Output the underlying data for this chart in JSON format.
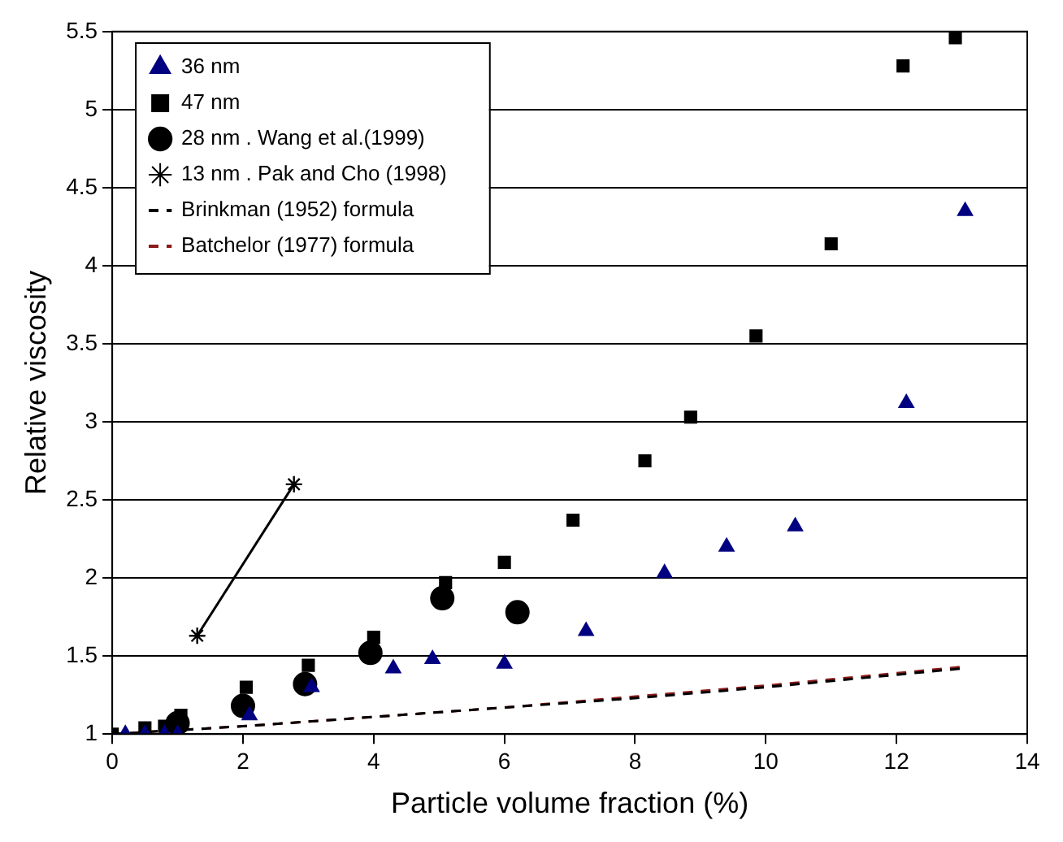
{
  "chart_data": {
    "type": "scatter",
    "xlabel": "Particle volume fraction (%)",
    "ylabel": "Relative viscosity",
    "xlim": [
      0,
      14
    ],
    "xticks": [
      0,
      2,
      4,
      6,
      8,
      10,
      12,
      14
    ],
    "ylim": [
      1,
      5.5
    ],
    "yticks": [
      1,
      1.5,
      2,
      2.5,
      3,
      3.5,
      4,
      4.5,
      5,
      5.5
    ],
    "grid": "y",
    "legend": "top left",
    "series": [
      {
        "name": "36 nm",
        "marker": "triangle",
        "color": "#000080",
        "x": [
          0.2,
          0.5,
          0.8,
          1.0,
          2.1,
          3.05,
          4.3,
          4.9,
          6.0,
          7.25,
          8.45,
          9.4,
          10.45,
          12.15,
          13.05
        ],
        "values": [
          1.0,
          1.0,
          1.0,
          1.0,
          1.12,
          1.3,
          1.42,
          1.48,
          1.45,
          1.66,
          2.03,
          2.2,
          2.33,
          3.12,
          4.35
        ]
      },
      {
        "name": "47 nm",
        "marker": "square",
        "color": "#000000",
        "x": [
          0.0,
          0.5,
          0.8,
          1.05,
          2.05,
          3.0,
          4.0,
          5.1,
          6.0,
          7.05,
          8.15,
          8.85,
          9.85,
          11.0,
          12.1,
          12.9
        ],
        "values": [
          1.0,
          1.04,
          1.05,
          1.12,
          1.3,
          1.44,
          1.62,
          1.97,
          2.1,
          2.37,
          2.75,
          3.03,
          3.55,
          4.14,
          5.28,
          5.46
        ]
      },
      {
        "name": "28 nm . Wang et al.(1999)",
        "marker": "circle",
        "color": "#000000",
        "x": [
          1.0,
          2.0,
          2.95,
          3.95,
          5.05,
          6.2
        ],
        "values": [
          1.07,
          1.18,
          1.32,
          1.52,
          1.87,
          1.78
        ]
      },
      {
        "name": "13 nm . Pak and Cho (1998)",
        "type": "line",
        "marker": "cross",
        "line_style": "solid",
        "color": "#000000",
        "x": [
          1.3,
          2.78
        ],
        "values": [
          1.63,
          2.6
        ]
      },
      {
        "name": "Brinkman (1952) formula",
        "type": "line",
        "marker": "none",
        "line_style": "dashed",
        "color": "#000000",
        "x": [
          0,
          2,
          4,
          6,
          8,
          10,
          12,
          13
        ],
        "values": [
          1.0,
          1.05,
          1.11,
          1.17,
          1.23,
          1.3,
          1.38,
          1.42
        ]
      },
      {
        "name": "Batchelor (1977) formula",
        "type": "line",
        "marker": "none",
        "line_style": "dashed",
        "color": "#8b1a1a",
        "x": [
          0,
          2,
          4,
          6,
          8,
          10,
          12,
          13
        ],
        "values": [
          1.0,
          1.05,
          1.11,
          1.17,
          1.24,
          1.31,
          1.39,
          1.43
        ]
      }
    ]
  }
}
